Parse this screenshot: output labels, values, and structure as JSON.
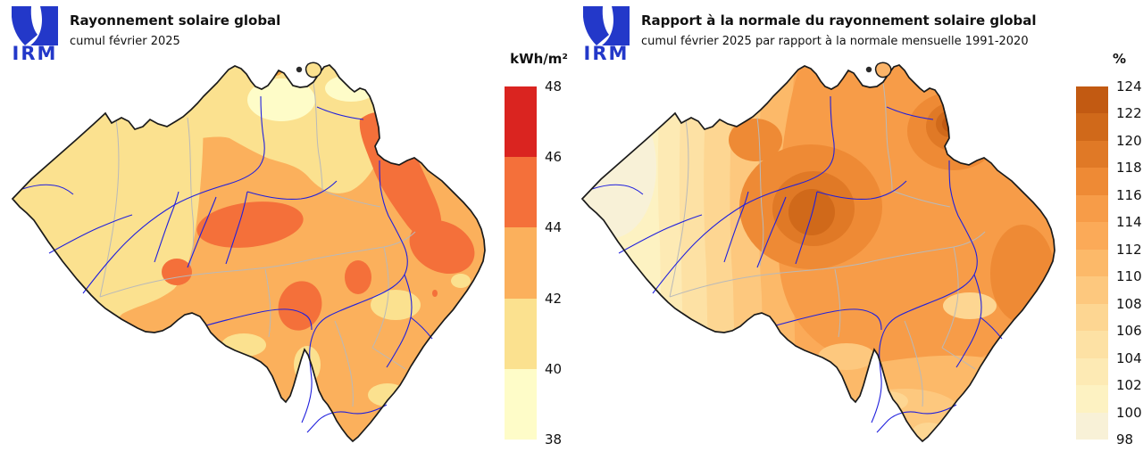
{
  "map": {
    "region": "Belgium",
    "border_color": "#1a1a1a",
    "province_border_color": "#b9b9b9",
    "river_color": "#2020dd",
    "logo_color": "#2338c9"
  },
  "panels": [
    {
      "logo_text": "IRM",
      "title": "Rayonnement solaire global",
      "subtitle": "cumul février 2025",
      "legend": {
        "unit": "kWh/m²",
        "ticks": [
          "48",
          "46",
          "44",
          "42",
          "40",
          "38"
        ],
        "colors": [
          "#da2420",
          "#f4703a",
          "#fbb05c",
          "#fbe18f",
          "#fefcc8"
        ]
      }
    },
    {
      "logo_text": "IRM",
      "title": "Rapport à la normale du rayonnement solaire global",
      "subtitle": "cumul février 2025 par rapport à la normale mensuelle 1991-2020",
      "legend": {
        "unit": "%",
        "ticks": [
          "124",
          "122",
          "120",
          "118",
          "116",
          "114",
          "112",
          "110",
          "108",
          "106",
          "104",
          "102",
          "100",
          "98"
        ],
        "colors": [
          "#c25a12",
          "#d0691a",
          "#e07926",
          "#ee8a35",
          "#f79c48",
          "#fbaa58",
          "#fcb969",
          "#fdc87e",
          "#fdd692",
          "#fde1a4",
          "#fdeab4",
          "#fdf2c2",
          "#f8f1d7"
        ]
      }
    }
  ]
}
